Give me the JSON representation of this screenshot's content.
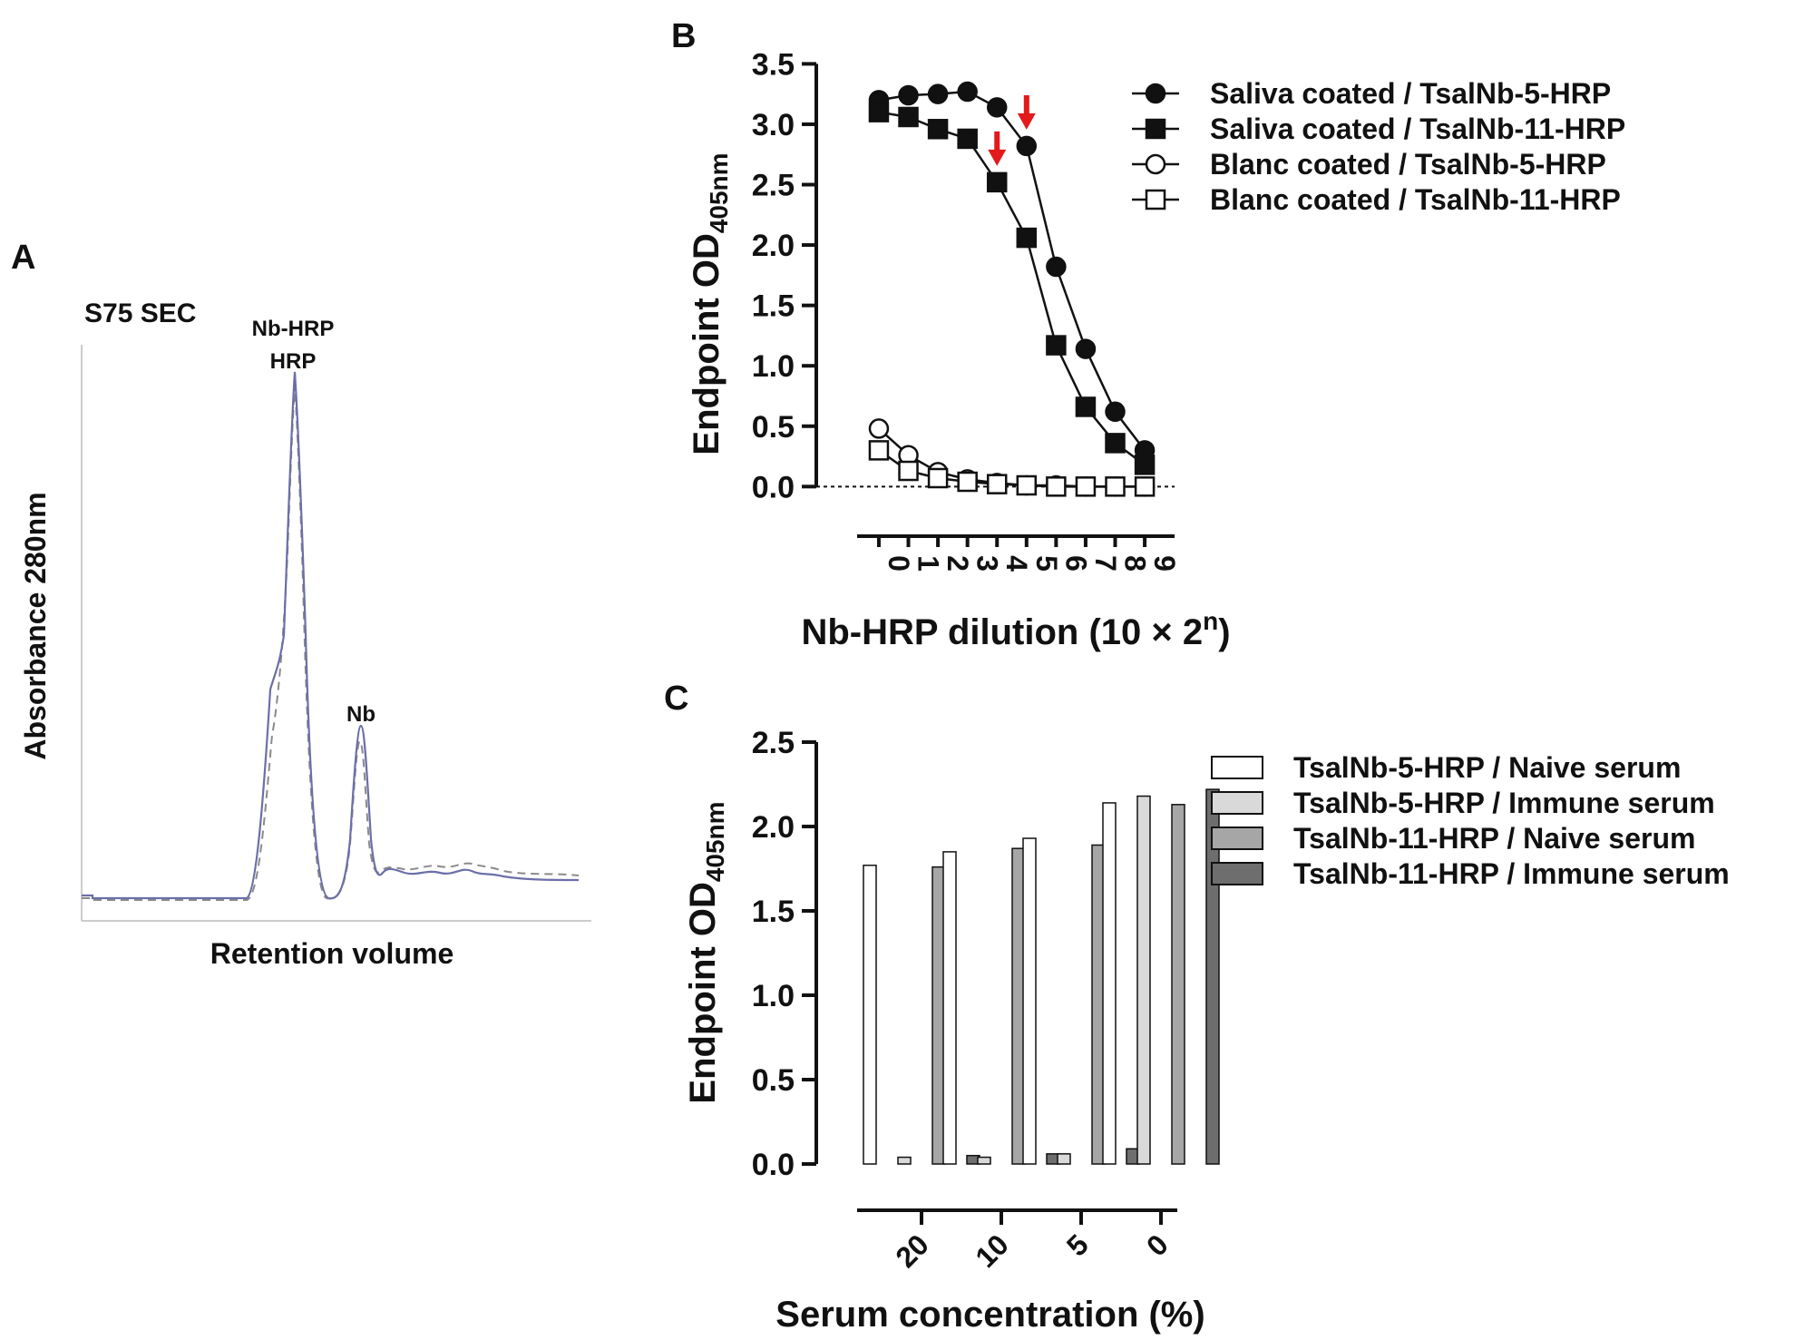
{
  "panels": {
    "A": {
      "letter": "A",
      "title": "S75 SEC",
      "peak1_line1": "Nb-HRP",
      "peak1_line2": "HRP",
      "peak2": "Nb",
      "ylabel": "Absorbance 280nm",
      "xlabel": "Retention volume"
    },
    "B": {
      "letter": "B",
      "ylabel_main": "Endpoint OD",
      "ylabel_sub": "405nm",
      "xlabel_main": "Nb-HRP dilution (10 × 2",
      "xlabel_sup": "n",
      "xlabel_end": ")"
    },
    "C": {
      "letter": "C",
      "ylabel_main": "Endpoint OD",
      "ylabel_sub": "405nm",
      "xlabel": "Serum concentration (%)"
    }
  },
  "chart_data": [
    {
      "panel": "A",
      "type": "line",
      "title": "S75 SEC",
      "xlabel": "Retention volume",
      "ylabel": "Absorbance 280nm",
      "annotations": [
        "Nb-HRP",
        "HRP",
        "Nb"
      ],
      "series": [
        {
          "style": "solid",
          "color": "#6b6fa8",
          "peaks": [
            {
              "label": "Nb-HRP / HRP",
              "rel_height": 1.0
            },
            {
              "label": "Nb",
              "rel_height": 0.32
            }
          ]
        },
        {
          "style": "dashed",
          "color": "#8a8a8a",
          "peaks": [
            {
              "label": "Nb-HRP / HRP",
              "rel_height": 0.95
            },
            {
              "label": "Nb",
              "rel_height": 0.28
            }
          ]
        }
      ]
    },
    {
      "panel": "B",
      "type": "line",
      "xlabel": "Nb-HRP dilution (10 × 2^n)",
      "ylabel": "Endpoint OD405nm",
      "x": [
        0,
        1,
        2,
        3,
        4,
        5,
        6,
        7,
        8,
        9
      ],
      "xlim": [
        0,
        9
      ],
      "ylim": [
        0,
        3.5
      ],
      "yticks": [
        "0.0",
        "0.5",
        "1.0",
        "1.5",
        "2.0",
        "2.5",
        "3.0",
        "3.5"
      ],
      "xticks": [
        "0",
        "1",
        "2",
        "3",
        "4",
        "5",
        "6",
        "7",
        "8",
        "9"
      ],
      "legend_position": "top-right",
      "reference_line": {
        "y": 0,
        "style": "dotted"
      },
      "arrows": [
        {
          "x": 5,
          "y": 2.82,
          "color": "#e31a1c"
        },
        {
          "x": 4,
          "y": 2.52,
          "color": "#e31a1c"
        }
      ],
      "series": [
        {
          "name": "Saliva coated / TsalNb-5-HRP",
          "marker": "circle",
          "filled": true,
          "values": [
            3.2,
            3.24,
            3.25,
            3.27,
            3.14,
            2.82,
            1.82,
            1.14,
            0.62,
            0.3
          ]
        },
        {
          "name": "Saliva coated / TsalNb-11-HRP",
          "marker": "square",
          "filled": true,
          "values": [
            3.1,
            3.06,
            2.96,
            2.88,
            2.52,
            2.06,
            1.17,
            0.66,
            0.36,
            0.18
          ]
        },
        {
          "name": "Blanc coated / TsalNb-5-HRP",
          "marker": "circle",
          "filled": false,
          "values": [
            0.48,
            0.26,
            0.12,
            0.06,
            0.03,
            0.01,
            0.01,
            0.0,
            0.0,
            0.0
          ]
        },
        {
          "name": "Blanc coated / TsalNb-11-HRP",
          "marker": "square",
          "filled": false,
          "values": [
            0.3,
            0.13,
            0.07,
            0.04,
            0.02,
            0.01,
            0.0,
            0.0,
            0.0,
            0.0
          ]
        }
      ]
    },
    {
      "panel": "C",
      "type": "bar",
      "xlabel": "Serum concentration (%)",
      "ylabel": "Endpoint OD405nm",
      "categories": [
        "20",
        "10",
        "5",
        "0"
      ],
      "ylim": [
        0,
        2.5
      ],
      "yticks": [
        "0.0",
        "0.5",
        "1.0",
        "1.5",
        "2.0",
        "2.5"
      ],
      "legend_position": "top-right",
      "series": [
        {
          "name": "TsalNb-5-HRP / Naive serum",
          "color": "#ffffff",
          "values": [
            1.77,
            1.85,
            1.93,
            2.14
          ]
        },
        {
          "name": "TsalNb-5-HRP / Immune serum",
          "color": "#d9d9d9",
          "values": [
            0.04,
            0.04,
            0.06,
            2.18
          ]
        },
        {
          "name": "TsalNb-11-HRP / Naive serum",
          "color": "#a6a6a6",
          "values": [
            1.76,
            1.87,
            1.89,
            2.13
          ]
        },
        {
          "name": "TsalNb-11-HRP / Immune serum",
          "color": "#6e6e6e",
          "values": [
            0.05,
            0.06,
            0.09,
            2.22
          ]
        }
      ]
    }
  ]
}
